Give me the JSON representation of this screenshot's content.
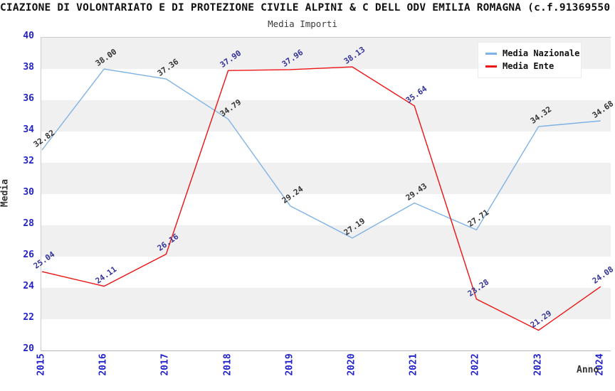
{
  "header": {
    "title": "CIAZIONE DI VOLONTARIATO E DI PROTEZIONE CIVILE ALPINI & C DELL ODV EMILIA ROMAGNA (c.f.91369550",
    "subtitle": "Media Importi"
  },
  "chart_data": {
    "type": "line",
    "x": [
      2015,
      2016,
      2017,
      2018,
      2019,
      2020,
      2021,
      2022,
      2023,
      2024
    ],
    "xlabel": "Anno",
    "ylabel": "Media",
    "ylim": [
      20,
      40
    ],
    "yticks": [
      20,
      22,
      24,
      26,
      28,
      30,
      32,
      34,
      36,
      38,
      40
    ],
    "grid": "alternating horizontal bands",
    "legend_position": "top-right",
    "series": [
      {
        "name": "Media Nazionale",
        "color": "#7fb2e6",
        "label_color": "#333333",
        "values": [
          32.82,
          38.0,
          37.36,
          34.79,
          29.24,
          27.19,
          29.43,
          27.71,
          34.32,
          34.68
        ],
        "labels": [
          "32.82",
          "38.00",
          "37.36",
          "34.79",
          "29.24",
          "27.19",
          "29.43",
          "27.71",
          "34.32",
          "34.68"
        ]
      },
      {
        "name": "Media Ente",
        "color": "#ee1111",
        "label_color": "#333399",
        "values": [
          25.04,
          24.11,
          26.16,
          37.9,
          37.96,
          38.13,
          35.64,
          23.28,
          21.29,
          24.08
        ],
        "labels": [
          "25.04",
          "24.11",
          "26.16",
          "37.90",
          "37.96",
          "38.13",
          "35.64",
          "23.28",
          "21.29",
          "24.08"
        ]
      }
    ]
  },
  "colors": {
    "tick_label": "#2222cc",
    "band_gray": "#f0f0f0",
    "plot_border": "#cccccc"
  }
}
